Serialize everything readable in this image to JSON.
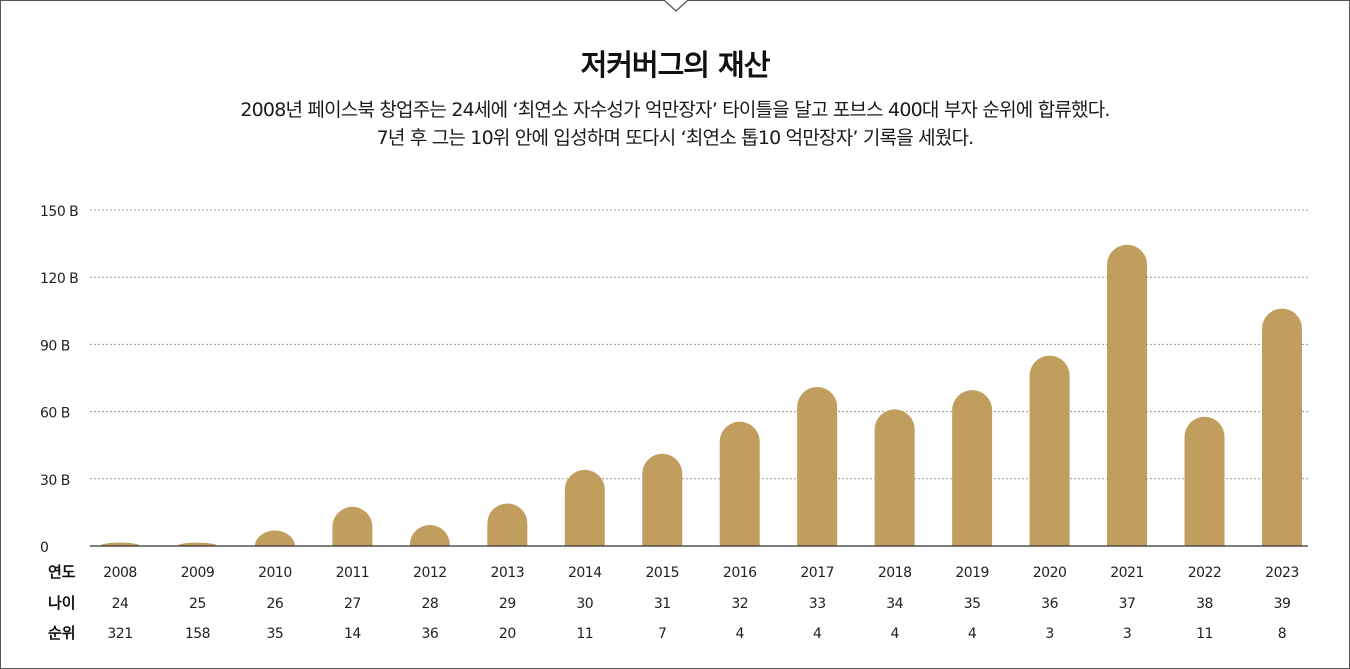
{
  "title": "저커버그의 재산",
  "subtitle_lines": [
    "2008년 페이스북 창업주는 24세에 ‘최연소 자수성가 억만장자’ 타이틀을 달고 포브스 400대 부자 순위에 합류했다.",
    "7년 후 그는 10위 안에 입성하며 또다시 ‘최연소 톱10 억만장자’ 기록을 세웠다."
  ],
  "colors": {
    "bar": "#c19e5e",
    "grid": "#999999",
    "axis": "#333333"
  },
  "chart_data": {
    "type": "bar",
    "categories": [
      "2008",
      "2009",
      "2010",
      "2011",
      "2012",
      "2013",
      "2014",
      "2015",
      "2016",
      "2017",
      "2018",
      "2019",
      "2020",
      "2021",
      "2022",
      "2023"
    ],
    "series": [
      {
        "values": [
          1.5,
          1.5,
          6.9,
          17.5,
          9.4,
          19,
          34,
          41.2,
          55.5,
          71,
          61,
          69.6,
          85,
          134.5,
          57.7,
          106
        ]
      }
    ],
    "y_ticks": [
      0,
      30,
      60,
      90,
      120,
      150
    ],
    "y_tick_labels": [
      "0",
      "30 B",
      "60 B",
      "90 B",
      "120 B",
      "150 B"
    ],
    "ylim": [
      0,
      150
    ],
    "grid": true,
    "table_rows": [
      {
        "label": "연도",
        "values": [
          "2008",
          "2009",
          "2010",
          "2011",
          "2012",
          "2013",
          "2014",
          "2015",
          "2016",
          "2017",
          "2018",
          "2019",
          "2020",
          "2021",
          "2022",
          "2023"
        ]
      },
      {
        "label": "나이",
        "values": [
          "24",
          "25",
          "26",
          "27",
          "28",
          "29",
          "30",
          "31",
          "32",
          "33",
          "34",
          "35",
          "36",
          "37",
          "38",
          "39"
        ]
      },
      {
        "label": "순위",
        "values": [
          "321",
          "158",
          "35",
          "14",
          "36",
          "20",
          "11",
          "7",
          "4",
          "4",
          "4",
          "4",
          "3",
          "3",
          "11",
          "8"
        ]
      }
    ]
  }
}
